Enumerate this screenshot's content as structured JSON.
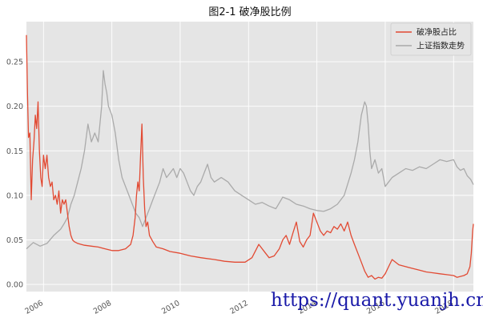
{
  "watermark": "https://quant.yuanjh.cn",
  "chart_data": {
    "type": "line",
    "title": "图2-1 破净股比例",
    "xlabel": "",
    "ylabel": "",
    "xlim": [
      2005.5,
      2018.58
    ],
    "ylim": [
      -0.008,
      0.295
    ],
    "yticks": [
      0.0,
      0.05,
      0.1,
      0.15,
      0.2,
      0.25
    ],
    "ytick_labels": [
      "0.00",
      "0.05",
      "0.10",
      "0.15",
      "0.20",
      "0.25"
    ],
    "xticks": [
      2006,
      2008,
      2010,
      2012,
      2014,
      2016,
      2018
    ],
    "xtick_labels": [
      "2006",
      "2008",
      "2010",
      "2012",
      "2014",
      "2016",
      "2018"
    ],
    "grid": true,
    "legend_position": "top-right",
    "series": [
      {
        "name": "破净股占比",
        "color": "#e24a33",
        "x": [
          2005.5,
          2005.53,
          2005.56,
          2005.6,
          2005.64,
          2005.68,
          2005.72,
          2005.76,
          2005.8,
          2005.84,
          2005.88,
          2005.92,
          2005.96,
          2006.0,
          2006.05,
          2006.1,
          2006.15,
          2006.2,
          2006.25,
          2006.3,
          2006.35,
          2006.4,
          2006.45,
          2006.5,
          2006.55,
          2006.6,
          2006.65,
          2006.7,
          2006.75,
          2006.8,
          2006.85,
          2006.9,
          2006.95,
          2007.0,
          2007.1,
          2007.2,
          2007.4,
          2007.6,
          2007.8,
          2008.0,
          2008.2,
          2008.4,
          2008.55,
          2008.62,
          2008.68,
          2008.72,
          2008.76,
          2008.8,
          2008.84,
          2008.88,
          2008.92,
          2008.96,
          2009.0,
          2009.05,
          2009.1,
          2009.2,
          2009.3,
          2009.5,
          2009.7,
          2010.0,
          2010.3,
          2010.6,
          2011.0,
          2011.3,
          2011.6,
          2011.9,
          2012.1,
          2012.3,
          2012.5,
          2012.6,
          2012.75,
          2012.9,
          2013.0,
          2013.1,
          2013.2,
          2013.3,
          2013.4,
          2013.5,
          2013.6,
          2013.7,
          2013.8,
          2013.9,
          2014.0,
          2014.1,
          2014.2,
          2014.3,
          2014.4,
          2014.5,
          2014.6,
          2014.7,
          2014.8,
          2014.9,
          2015.0,
          2015.1,
          2015.2,
          2015.3,
          2015.4,
          2015.5,
          2015.6,
          2015.7,
          2015.8,
          2015.9,
          2016.0,
          2016.1,
          2016.2,
          2016.4,
          2016.6,
          2016.8,
          2017.0,
          2017.2,
          2017.4,
          2017.6,
          2017.8,
          2018.0,
          2018.1,
          2018.2,
          2018.3,
          2018.4,
          2018.48,
          2018.52,
          2018.56,
          2018.58
        ],
        "values": [
          0.28,
          0.215,
          0.165,
          0.17,
          0.095,
          0.14,
          0.16,
          0.19,
          0.175,
          0.205,
          0.15,
          0.12,
          0.11,
          0.145,
          0.13,
          0.145,
          0.12,
          0.11,
          0.115,
          0.095,
          0.1,
          0.09,
          0.105,
          0.08,
          0.095,
          0.09,
          0.095,
          0.08,
          0.065,
          0.055,
          0.05,
          0.048,
          0.047,
          0.046,
          0.045,
          0.044,
          0.043,
          0.042,
          0.04,
          0.038,
          0.038,
          0.04,
          0.045,
          0.055,
          0.075,
          0.1,
          0.115,
          0.105,
          0.145,
          0.18,
          0.12,
          0.085,
          0.065,
          0.07,
          0.055,
          0.048,
          0.042,
          0.04,
          0.037,
          0.035,
          0.032,
          0.03,
          0.028,
          0.026,
          0.025,
          0.025,
          0.03,
          0.045,
          0.035,
          0.03,
          0.032,
          0.04,
          0.05,
          0.055,
          0.045,
          0.058,
          0.07,
          0.048,
          0.042,
          0.05,
          0.055,
          0.08,
          0.07,
          0.06,
          0.055,
          0.06,
          0.058,
          0.065,
          0.062,
          0.068,
          0.06,
          0.07,
          0.055,
          0.045,
          0.035,
          0.025,
          0.015,
          0.008,
          0.01,
          0.006,
          0.008,
          0.007,
          0.012,
          0.02,
          0.028,
          0.022,
          0.02,
          0.018,
          0.016,
          0.014,
          0.013,
          0.012,
          0.011,
          0.01,
          0.008,
          0.009,
          0.01,
          0.012,
          0.02,
          0.035,
          0.06,
          0.068
        ]
      },
      {
        "name": "上证指数走势",
        "color": "#aaaaaa",
        "x": [
          2005.5,
          2005.7,
          2005.9,
          2006.1,
          2006.3,
          2006.5,
          2006.6,
          2006.7,
          2006.8,
          2006.9,
          2007.0,
          2007.1,
          2007.2,
          2007.3,
          2007.4,
          2007.5,
          2007.6,
          2007.7,
          2007.75,
          2007.8,
          2007.85,
          2007.9,
          2008.0,
          2008.1,
          2008.2,
          2008.3,
          2008.4,
          2008.5,
          2008.6,
          2008.7,
          2008.8,
          2008.9,
          2009.0,
          2009.1,
          2009.2,
          2009.3,
          2009.4,
          2009.5,
          2009.6,
          2009.7,
          2009.8,
          2009.9,
          2010.0,
          2010.1,
          2010.2,
          2010.3,
          2010.4,
          2010.5,
          2010.6,
          2010.7,
          2010.8,
          2010.9,
          2011.0,
          2011.2,
          2011.4,
          2011.6,
          2011.8,
          2012.0,
          2012.2,
          2012.4,
          2012.6,
          2012.8,
          2013.0,
          2013.2,
          2013.4,
          2013.6,
          2013.8,
          2014.0,
          2014.2,
          2014.4,
          2014.6,
          2014.8,
          2015.0,
          2015.1,
          2015.2,
          2015.3,
          2015.4,
          2015.45,
          2015.5,
          2015.55,
          2015.6,
          2015.7,
          2015.8,
          2015.9,
          2016.0,
          2016.1,
          2016.2,
          2016.4,
          2016.6,
          2016.8,
          2017.0,
          2017.2,
          2017.4,
          2017.6,
          2017.8,
          2018.0,
          2018.1,
          2018.2,
          2018.3,
          2018.4,
          2018.5,
          2018.58
        ],
        "values": [
          0.04,
          0.047,
          0.043,
          0.046,
          0.055,
          0.062,
          0.068,
          0.075,
          0.09,
          0.1,
          0.115,
          0.13,
          0.15,
          0.18,
          0.16,
          0.17,
          0.16,
          0.2,
          0.24,
          0.225,
          0.215,
          0.2,
          0.19,
          0.17,
          0.14,
          0.12,
          0.11,
          0.1,
          0.09,
          0.08,
          0.075,
          0.065,
          0.075,
          0.085,
          0.095,
          0.105,
          0.115,
          0.13,
          0.12,
          0.125,
          0.13,
          0.12,
          0.13,
          0.125,
          0.115,
          0.105,
          0.1,
          0.11,
          0.115,
          0.125,
          0.135,
          0.12,
          0.115,
          0.12,
          0.115,
          0.105,
          0.1,
          0.095,
          0.09,
          0.092,
          0.088,
          0.085,
          0.098,
          0.095,
          0.09,
          0.088,
          0.085,
          0.083,
          0.082,
          0.085,
          0.09,
          0.1,
          0.125,
          0.14,
          0.16,
          0.19,
          0.205,
          0.2,
          0.18,
          0.15,
          0.13,
          0.14,
          0.125,
          0.13,
          0.11,
          0.115,
          0.12,
          0.125,
          0.13,
          0.128,
          0.132,
          0.13,
          0.135,
          0.14,
          0.138,
          0.14,
          0.132,
          0.128,
          0.13,
          0.122,
          0.118,
          0.112
        ]
      }
    ]
  }
}
